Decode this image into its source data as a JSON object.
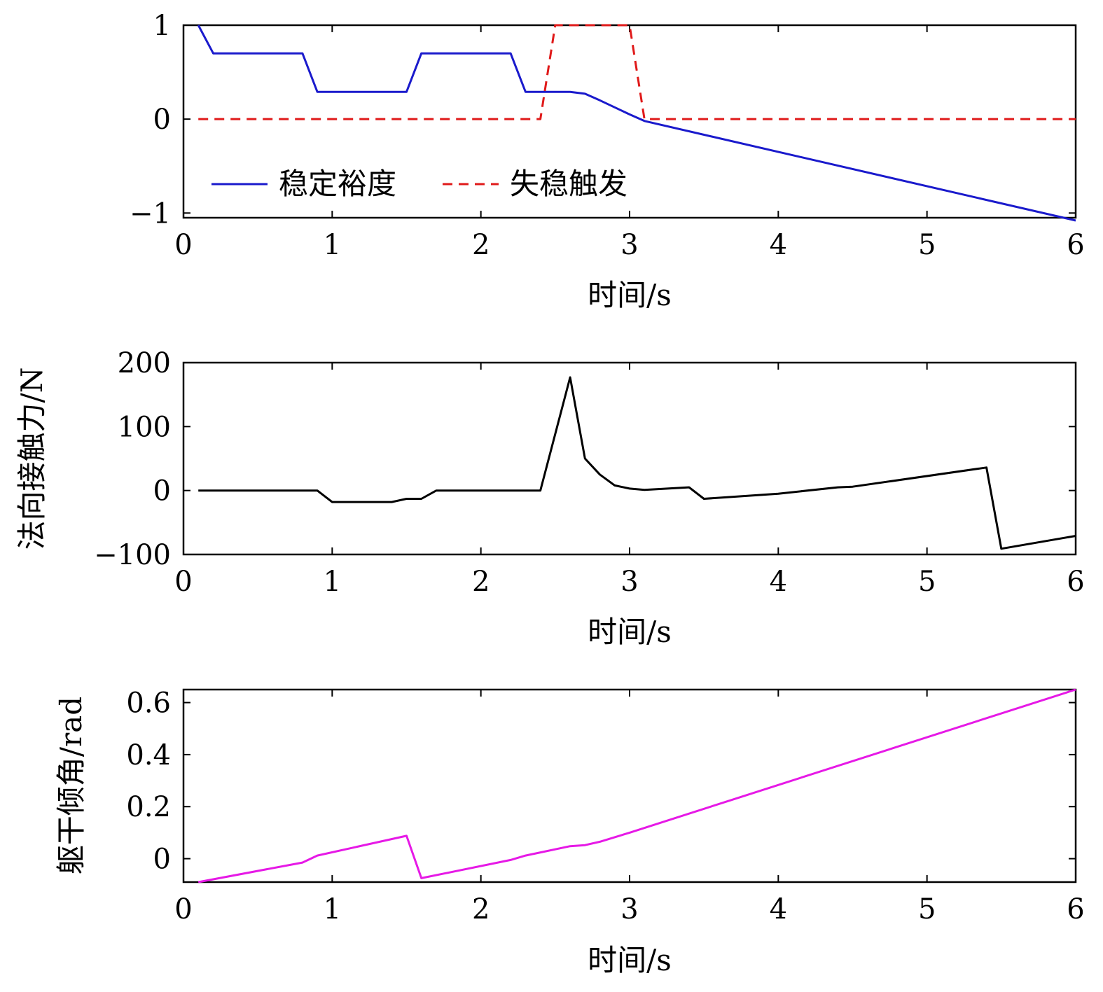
{
  "chart_data": [
    {
      "type": "line",
      "xlabel": "时间/s",
      "ylabel": "",
      "xlim": [
        0,
        6
      ],
      "ylim": [
        -1.05,
        1
      ],
      "xticks": [
        0,
        1,
        2,
        3,
        4,
        5,
        6
      ],
      "xtick_labels": [
        "0",
        "1",
        "2",
        "3",
        "4",
        "5",
        "6"
      ],
      "yticks": [
        -1,
        0,
        1
      ],
      "ytick_labels": [
        "−1",
        "0",
        "1"
      ],
      "legend_position": "bottom-left",
      "series": [
        {
          "name": "稳定裕度",
          "color": "#1a1acc",
          "dash": "solid",
          "x": [
            0.1,
            0.2,
            0.8,
            0.9,
            1.5,
            1.6,
            2.2,
            2.3,
            2.6,
            2.7,
            2.8,
            3.0,
            3.1,
            6.0
          ],
          "y": [
            1.0,
            0.7,
            0.7,
            0.29,
            0.29,
            0.7,
            0.7,
            0.29,
            0.29,
            0.27,
            0.2,
            0.05,
            -0.02,
            -1.08
          ]
        },
        {
          "name": "失稳触发",
          "color": "#e01a1a",
          "dash": "dashed",
          "x": [
            0.1,
            2.4,
            2.5,
            3.0,
            3.1,
            6.0
          ],
          "y": [
            0,
            0,
            1,
            1,
            0,
            0
          ]
        }
      ]
    },
    {
      "type": "line",
      "xlabel": "时间/s",
      "ylabel": "法向接触力/N",
      "xlim": [
        0,
        6
      ],
      "ylim": [
        -100,
        200
      ],
      "xticks": [
        0,
        1,
        2,
        3,
        4,
        5,
        6
      ],
      "xtick_labels": [
        "0",
        "1",
        "2",
        "3",
        "4",
        "5",
        "6"
      ],
      "yticks": [
        -100,
        0,
        100,
        200
      ],
      "ytick_labels": [
        "−100",
        "0",
        "100",
        "200"
      ],
      "series": [
        {
          "name": "法向接触力",
          "color": "#000000",
          "dash": "solid",
          "x": [
            0.1,
            0.9,
            1.0,
            1.4,
            1.5,
            1.6,
            1.7,
            2.4,
            2.6,
            2.7,
            2.8,
            2.9,
            3.0,
            3.1,
            3.4,
            3.5,
            4.0,
            4.4,
            4.5,
            5.4,
            5.5,
            6.0
          ],
          "y": [
            0,
            0,
            -18,
            -18,
            -13,
            -13,
            0,
            0,
            177,
            50,
            25,
            8,
            3,
            1,
            5,
            -13,
            -5,
            5,
            6,
            36,
            -91,
            -71
          ]
        }
      ]
    },
    {
      "type": "line",
      "xlabel": "时间/s",
      "ylabel": "躯干倾角/rad",
      "xlim": [
        0,
        6
      ],
      "ylim": [
        -0.09,
        0.65
      ],
      "xticks": [
        0,
        1,
        2,
        3,
        4,
        5,
        6
      ],
      "xtick_labels": [
        "0",
        "1",
        "2",
        "3",
        "4",
        "5",
        "6"
      ],
      "yticks": [
        0,
        0.2,
        0.4,
        0.6
      ],
      "ytick_labels": [
        "0",
        "0.2",
        "0.4",
        "0.6"
      ],
      "series": [
        {
          "name": "躯干倾角",
          "color": "#e619e6",
          "dash": "solid",
          "x": [
            0.1,
            0.8,
            0.9,
            1.5,
            1.6,
            2.2,
            2.3,
            2.6,
            2.7,
            2.8,
            3.0,
            6.0
          ],
          "y": [
            -0.09,
            -0.015,
            0.012,
            0.088,
            -0.075,
            -0.005,
            0.012,
            0.048,
            0.052,
            0.065,
            0.1,
            0.65
          ]
        }
      ]
    }
  ]
}
